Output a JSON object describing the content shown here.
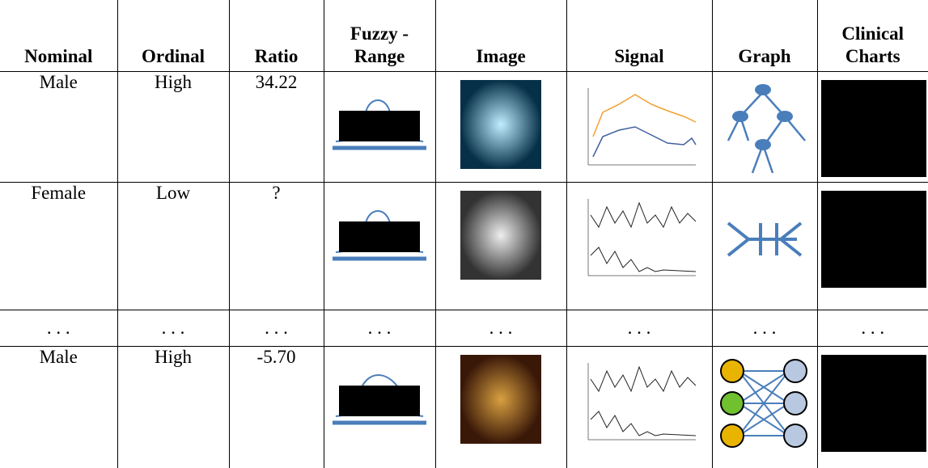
{
  "table": {
    "headers": [
      "Nominal",
      "Ordinal",
      "Ratio",
      "Fuzzy - Range",
      "Image",
      "Signal",
      "Graph",
      "Clinical Charts"
    ],
    "rows": [
      [
        "Male",
        "High",
        "34.22"
      ],
      [
        "Female",
        "Low",
        "?"
      ],
      [
        ". . .",
        ". . .",
        ". . .",
        ". . .",
        ". . .",
        ". . .",
        ". . .",
        ". . ."
      ],
      [
        "Male",
        "High",
        "-5.70"
      ]
    ]
  }
}
